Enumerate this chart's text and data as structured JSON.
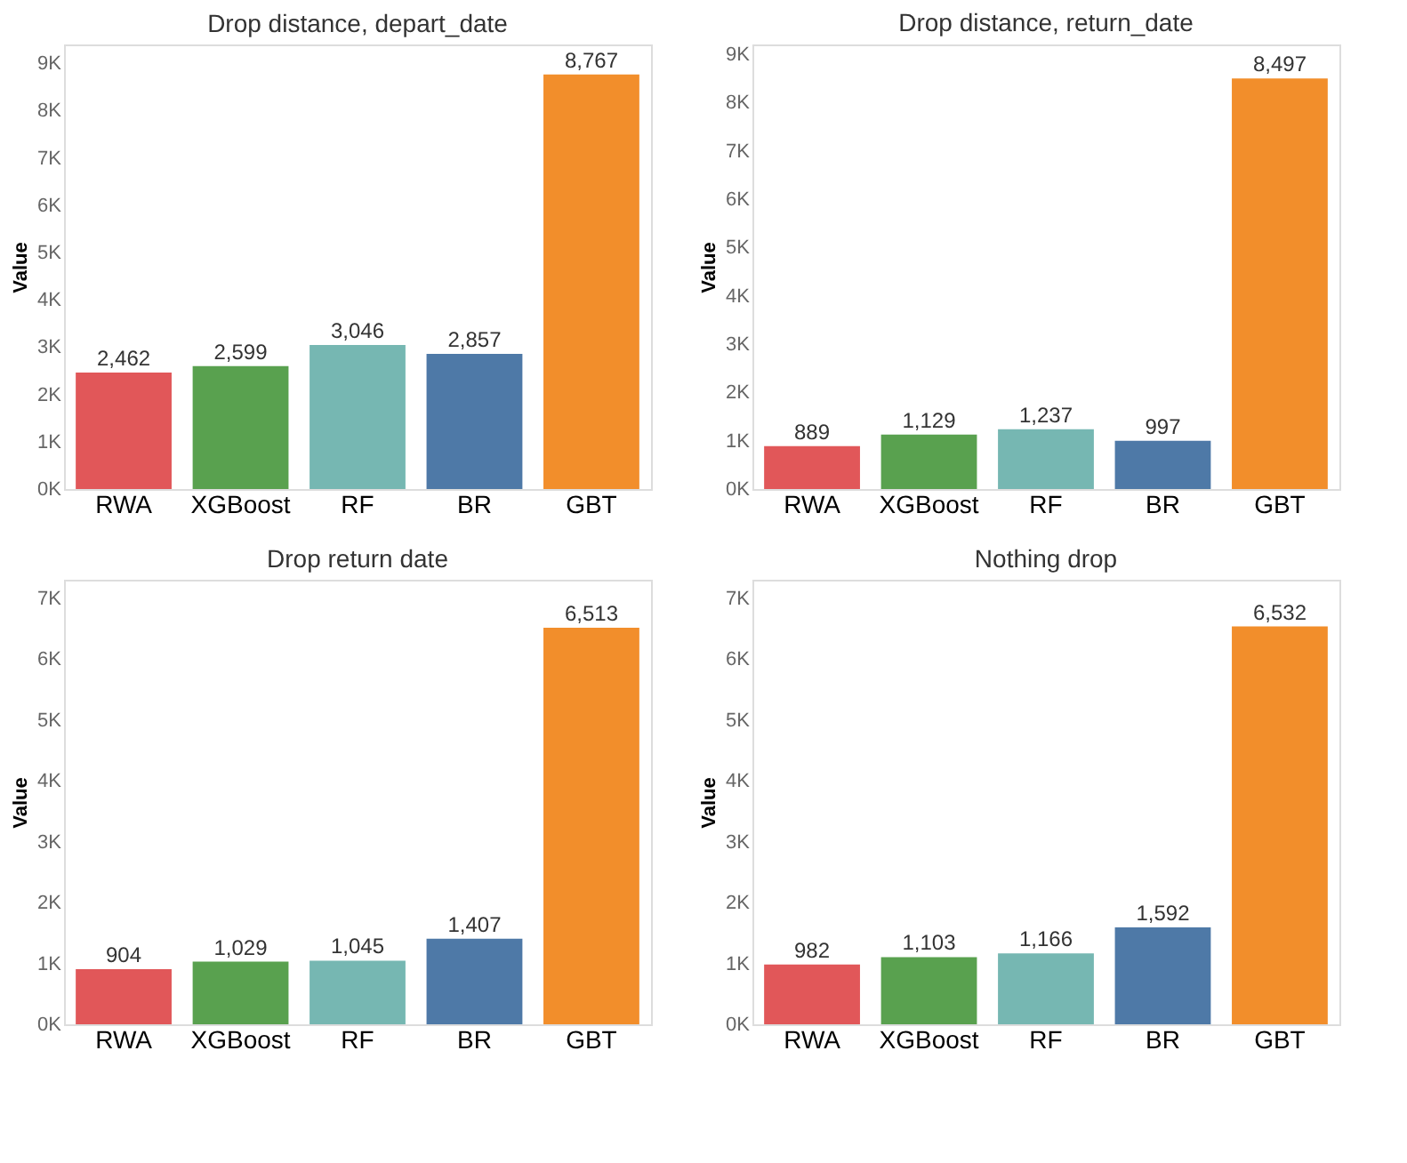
{
  "chart_data": [
    {
      "type": "bar",
      "title": "Drop distance, depart_date",
      "ylabel": "Value",
      "categories": [
        "RWA",
        "XGBoost",
        "RF",
        "BR",
        "GBT"
      ],
      "values": [
        2462,
        2599,
        3046,
        2857,
        8767
      ],
      "value_labels": [
        "2,462",
        "2,599",
        "3,046",
        "2,857",
        "8,767"
      ],
      "colors": [
        "#e15759",
        "#59a14f",
        "#76b7b2",
        "#4e79a7",
        "#f28e2b"
      ],
      "ylim": [
        0,
        9400
      ],
      "yticks": [
        {
          "value": 0,
          "label": "0K"
        },
        {
          "value": 1000,
          "label": "1K"
        },
        {
          "value": 2000,
          "label": "2K"
        },
        {
          "value": 3000,
          "label": "3K"
        },
        {
          "value": 4000,
          "label": "4K"
        },
        {
          "value": 5000,
          "label": "5K"
        },
        {
          "value": 6000,
          "label": "6K"
        },
        {
          "value": 7000,
          "label": "7K"
        },
        {
          "value": 8000,
          "label": "8K"
        },
        {
          "value": 9000,
          "label": "9K"
        }
      ],
      "grid": false
    },
    {
      "type": "bar",
      "title": "Drop distance, return_date",
      "ylabel": "Value",
      "categories": [
        "RWA",
        "XGBoost",
        "RF",
        "BR",
        "GBT"
      ],
      "values": [
        889,
        1129,
        1237,
        997,
        8497
      ],
      "value_labels": [
        "889",
        "1,129",
        "1,237",
        "997",
        "8,497"
      ],
      "colors": [
        "#e15759",
        "#59a14f",
        "#76b7b2",
        "#4e79a7",
        "#f28e2b"
      ],
      "ylim": [
        0,
        9200
      ],
      "yticks": [
        {
          "value": 0,
          "label": "0K"
        },
        {
          "value": 1000,
          "label": "1K"
        },
        {
          "value": 2000,
          "label": "2K"
        },
        {
          "value": 3000,
          "label": "3K"
        },
        {
          "value": 4000,
          "label": "4K"
        },
        {
          "value": 5000,
          "label": "5K"
        },
        {
          "value": 6000,
          "label": "6K"
        },
        {
          "value": 7000,
          "label": "7K"
        },
        {
          "value": 8000,
          "label": "8K"
        },
        {
          "value": 9000,
          "label": "9K"
        }
      ],
      "grid": false
    },
    {
      "type": "bar",
      "title": "Drop return date",
      "ylabel": "Value",
      "categories": [
        "RWA",
        "XGBoost",
        "RF",
        "BR",
        "GBT"
      ],
      "values": [
        904,
        1029,
        1045,
        1407,
        6513
      ],
      "value_labels": [
        "904",
        "1,029",
        "1,045",
        "1,407",
        "6,513"
      ],
      "colors": [
        "#e15759",
        "#59a14f",
        "#76b7b2",
        "#4e79a7",
        "#f28e2b"
      ],
      "ylim": [
        0,
        7300
      ],
      "yticks": [
        {
          "value": 0,
          "label": "0K"
        },
        {
          "value": 1000,
          "label": "1K"
        },
        {
          "value": 2000,
          "label": "2K"
        },
        {
          "value": 3000,
          "label": "3K"
        },
        {
          "value": 4000,
          "label": "4K"
        },
        {
          "value": 5000,
          "label": "5K"
        },
        {
          "value": 6000,
          "label": "6K"
        },
        {
          "value": 7000,
          "label": "7K"
        }
      ],
      "grid": false
    },
    {
      "type": "bar",
      "title": "Nothing drop",
      "ylabel": "Value",
      "categories": [
        "RWA",
        "XGBoost",
        "RF",
        "BR",
        "GBT"
      ],
      "values": [
        982,
        1103,
        1166,
        1592,
        6532
      ],
      "value_labels": [
        "982",
        "1,103",
        "1,166",
        "1,592",
        "6,532"
      ],
      "colors": [
        "#e15759",
        "#59a14f",
        "#76b7b2",
        "#4e79a7",
        "#f28e2b"
      ],
      "ylim": [
        0,
        7300
      ],
      "yticks": [
        {
          "value": 0,
          "label": "0K"
        },
        {
          "value": 1000,
          "label": "1K"
        },
        {
          "value": 2000,
          "label": "2K"
        },
        {
          "value": 3000,
          "label": "3K"
        },
        {
          "value": 4000,
          "label": "4K"
        },
        {
          "value": 5000,
          "label": "5K"
        },
        {
          "value": 6000,
          "label": "6K"
        },
        {
          "value": 7000,
          "label": "7K"
        }
      ],
      "grid": false
    }
  ]
}
